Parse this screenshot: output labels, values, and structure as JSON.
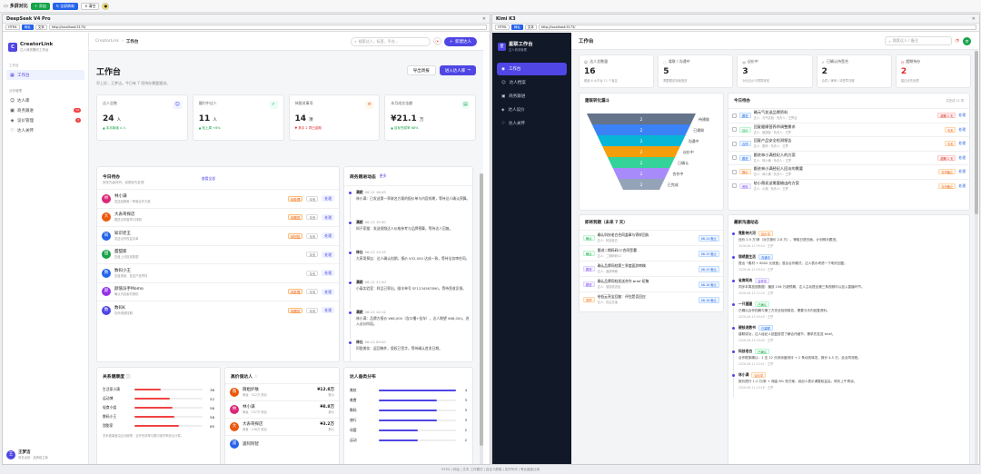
{
  "topbar": {
    "title": "多屏对比",
    "add": "添加",
    "refresh_all": "全屏刷新",
    "clear": "清空"
  },
  "footer": "HTML | 网址 | 文本 工作模式 | 自定义屏幕 | 实时写作 | 等比缩放比例",
  "left_pane": {
    "title": "DeepSeek V4 Pro",
    "mode_html": "HTML",
    "mode_web": "网址",
    "mode_text": "文本",
    "url": "http://localhost:5173/"
  },
  "right_pane": {
    "title": "Kimi K3",
    "mode_html": "HTML",
    "mode_web": "网址",
    "mode_text": "文本",
    "url": "http://localhost:5173/"
  },
  "L": {
    "brand": "CreatorLink",
    "brand_sub": "达人商务履约工作台",
    "sec1": "工作台",
    "sec2": "业务管理",
    "nav": [
      {
        "label": "工作台"
      },
      {
        "label": "达人库"
      },
      {
        "label": "商务跟进",
        "badge": "14"
      },
      {
        "label": "议价管理",
        "badge": "3"
      },
      {
        "label": "达人关怀"
      }
    ],
    "user": {
      "name": "王梦洁",
      "role": "商务运营 · 品牌组主管",
      "avatar": "王"
    },
    "crumb": "CreatorLink",
    "crumb_cur": "工作台",
    "search": "搜索达人、标签、平台...",
    "new_btn": "新建达人",
    "title": "工作台",
    "subtitle": "早上好，王梦洁。今日有 7 项待办需要跟进。",
    "export": "导出周报",
    "enter": "进入达人库",
    "stats": [
      {
        "label": "达人总数",
        "value": "24",
        "unit": "人",
        "sub": "▲ 本月新增 4 人"
      },
      {
        "label": "履约中达人",
        "value": "11",
        "unit": "人",
        "sub": "▲ 较上周 +8%"
      },
      {
        "label": "待跟进事项",
        "value": "14",
        "unit": "项",
        "sub": "▼ 其中 2 项已逾期"
      },
      {
        "label": "本月成交金额",
        "value": "¥21.1",
        "unit": "万",
        "sub": "▲ 目标完成率 68%"
      }
    ],
    "todo": {
      "title": "今日待办",
      "sub": "按优先级排列，逾期优先处理",
      "link": "查看全部",
      "today": "今天",
      "handle": "处理",
      "items": [
        {
          "av": "林",
          "color": "#db2777",
          "name": "林小满",
          "desc": "发送品牌第一季度合作方案",
          "tag": "待处理"
        },
        {
          "av": "大",
          "color": "#ea580c",
          "name": "大表哥探店",
          "desc": "跟进合同盖章与排期",
          "tag": "待跟进"
        },
        {
          "av": "知",
          "color": "#2563eb",
          "name": "知识老王",
          "desc": "发送合作权益清单",
          "tag": "待回复"
        },
        {
          "av": "甜",
          "color": "#16a34a",
          "name": "甜甜家",
          "desc": "复盘上月投放数据",
          "tag": ""
        },
        {
          "av": "数",
          "color": "#2563eb",
          "name": "数码小王",
          "desc": "复盘视频，发送产品寄样",
          "tag": ""
        },
        {
          "av": "颜",
          "color": "#9333ea",
          "name": "颜值派手Momo",
          "desc": "确认内容素材授权",
          "tag": "待处理"
        },
        {
          "av": "数",
          "color": "#4f46e5",
          "name": "数码K",
          "desc": "协商视频档期",
          "tag": "待跟进"
        }
      ]
    },
    "timeline": {
      "title": "商务跟进动态",
      "more": "更多",
      "items": [
        {
          "who": "满妮",
          "date": "06-12 16:45",
          "text": "林小满：已发送第一季联名方案的报价单与内容排期，等待达人确认预算。"
        },
        {
          "who": "满妮",
          "date": "06-12 15:30",
          "text": "知子家猫：发送视频达人价格参考与品牌预算，等待达人回复。"
        },
        {
          "who": "林仕",
          "date": "06-12 13:15",
          "text": "大表哥探店：达人确认档期，报价 ¥32,000 达成一致，等待法务审合同。"
        },
        {
          "who": "满妮",
          "date": "06-12 11:20",
          "text": "小泰实验室：样品已寄出，顺丰单号 SF1234567890，等待签收反馈。"
        },
        {
          "who": "满妮",
          "date": "06-12 10:12",
          "text": "林小满：品牌方报价 ¥68,000（含口播+挂车），达人期望 ¥88,000，进入议价阶段。"
        },
        {
          "who": "林仕",
          "date": "06-12 09:20",
          "text": "阿甜美妆：返回稿件，版权已签字，等待确认首发日期。"
        }
      ]
    },
    "health": {
      "title": "关系健康度",
      "items": [
        {
          "name": "生活家小满",
          "value": 38
        },
        {
          "name": "运动博",
          "value": 52
        },
        {
          "name": "轻食小姐",
          "value": 56
        },
        {
          "name": "数码小王",
          "value": 58
        },
        {
          "name": "甜甜家",
          "value": 65
        }
      ],
      "note": "关系健康度由互动频率、合作完成率与履约准时率综合计算。"
    },
    "top": {
      "title": "高价值达人",
      "items": [
        {
          "av": "薇",
          "color": "#ea580c",
          "name": "薇姐护肤",
          "sub": "美妆 · 312万 粉丝",
          "amount": "¥12.8万",
          "lbl": "报价"
        },
        {
          "av": "林",
          "color": "#db2777",
          "name": "林小满",
          "sub": "美妆 · 237万 粉丝",
          "amount": "¥8.8万",
          "lbl": "报价"
        },
        {
          "av": "大",
          "color": "#ea580c",
          "name": "大表哥探店",
          "sub": "美食 · 156万 粉丝",
          "amount": "¥3.2万",
          "lbl": "报价"
        },
        {
          "av": "遥",
          "color": "#2563eb",
          "name": "遥阿阿智",
          "sub": "",
          "amount": "",
          "lbl": ""
        }
      ]
    },
    "cat": {
      "title": "达人垂类分布",
      "items": [
        {
          "name": "美妆",
          "value": 4
        },
        {
          "name": "美食",
          "value": 3
        },
        {
          "name": "数码",
          "value": 3
        },
        {
          "name": "旅行",
          "value": 3
        },
        {
          "name": "母婴",
          "value": 2
        },
        {
          "name": "运动",
          "value": 2
        }
      ]
    }
  },
  "R": {
    "brand": "星联工作台",
    "brand_sub": "达人商务管理",
    "nav": [
      {
        "label": "工作台"
      },
      {
        "label": "达人档案"
      },
      {
        "label": "商务跟进"
      },
      {
        "label": "达人议价"
      },
      {
        "label": "达人关怀"
      }
    ],
    "title": "工作台",
    "search": "搜索达人 / 备注",
    "avatar": "李",
    "stats": [
      {
        "label": "达人总数量",
        "value": "16",
        "sub": "覆盖 6 大平台 11 个省区"
      },
      {
        "label": "谍联 / 沟通中",
        "value": "5",
        "sub": "需要跟进持续推进"
      },
      {
        "label": "议价中",
        "value": "3",
        "sub": "对比议价与预算底线"
      },
      {
        "label": "已确认待签合",
        "value": "2",
        "sub": "合同 / 律审 / 待签章流程"
      },
      {
        "label": "超期待办",
        "value": "2",
        "sub": "建议优先处理"
      }
    ],
    "funnel": {
      "title": "建联转化漏斗",
      "stages": [
        {
          "name": "待建联",
          "value": 2,
          "color": "#64748b"
        },
        {
          "name": "已建联",
          "value": 2,
          "color": "#3b82f6"
        },
        {
          "name": "沟通中",
          "value": 2,
          "color": "#06b6d4"
        },
        {
          "name": "议价中",
          "value": 2,
          "color": "#f59e0b"
        },
        {
          "name": "已确认",
          "value": 2,
          "color": "#34d399"
        },
        {
          "name": "合作中",
          "value": 2,
          "color": "#a78bfa"
        },
        {
          "name": "已完成",
          "value": 2,
          "color": "#94a3b8"
        }
      ]
    },
    "todo": {
      "title": "今日待办",
      "meta": "共完成 12 项",
      "handle": "处理",
      "items": [
        {
          "tag": "跟进",
          "tc": "tg-bl",
          "title": "确元气发送品牌资料",
          "sub": "达人：元气实验 · 负责人：王梦洁",
          "due": "超期 2 天",
          "dc": "tg-rd"
        },
        {
          "tag": "议价",
          "tc": "tg-gr",
          "title": "回复健康营养师调整需求",
          "sub": "达人：健康营 · 负责人：王梦",
          "due": "今天",
          "dc": "tg-or"
        },
        {
          "tag": "合同",
          "tc": "tg-bl",
          "title": "回复产品安全检测报告",
          "sub": "达人：数码 · 负责人：王梦",
          "due": "今天",
          "dc": "tg-or"
        },
        {
          "tag": "跟进",
          "tc": "tg-bl",
          "title": "跟进林小满经纪人的方案",
          "sub": "达人：林小满 · 负责人：王梦",
          "due": "超期 2 天",
          "dc": "tg-rd"
        },
        {
          "tag": "报价",
          "tc": "tg-or",
          "title": "跟进林小满经纪人回访的需要",
          "sub": "达人：林小满 · 负责人：王梦",
          "due": "今天截止",
          "dc": "tg-or"
        },
        {
          "tag": "资料",
          "tc": "tg-pu",
          "title": "给小薇发送需要输出的方案",
          "sub": "达人：小薇 · 负责人：王梦",
          "due": "今天截止",
          "dc": "tg-or"
        }
      ]
    },
    "deadline": {
      "title": "即将到期（未来 7 天）",
      "items": [
        {
          "tag": "确认",
          "tc": "tg-gr",
          "title": "确认科技老白合同盖章与寄样回执",
          "sub": "达人：科技老白",
          "date": "06-14 截止"
        },
        {
          "tag": "确认",
          "tc": "tg-gr",
          "title": "跟进二期码码CC合同签署",
          "sub": "达人：二期码码CC",
          "date": "06-15 截止"
        },
        {
          "tag": "跟进",
          "tc": "tg-pu",
          "title": "确认品牌同档第三季度面辞审稿",
          "sub": "达人：面辞审稿",
          "date": "06-15 截止"
        },
        {
          "tag": "跟进",
          "tc": "tg-pu",
          "title": "确认品牌同档发送合作 brief 初稿",
          "sub": "达人：健康说说话",
          "date": "06-16 截止"
        },
        {
          "tag": "关怀",
          "tc": "tg-or",
          "title": "给低云亮宝回复：评估是否回应",
          "sub": "达人：低云亮宝",
          "date": "06-18 截止"
        }
      ]
    },
    "activity": {
      "title": "最新沟通动态",
      "items": [
        {
          "who": "霓影神大河",
          "tag": "议价中",
          "tc": "tg-or",
          "text": "还价 2.5 万/条（对方报价 2.8 万），等取已提去面，计划明天跟进。",
          "time": "2026-06-13 09:54 · 王梦"
        },
        {
          "who": "锦绣要生活",
          "tag": "沟通中",
          "tc": "tg-bl",
          "text": "提出「素材 + 8000 元底座」混合合作模式，达人表示考虑一下明天回复。",
          "time": "2026-06-13 09:54 · 王梦"
        },
        {
          "who": "省席阿冉",
          "tag": "合作中",
          "tc": "tg-pu",
          "text": "同步本周投放数据：播放 156 万超预期，达人主动提出第三条视频可以加入直播环节。",
          "time": "2026-06-13 11:20 · 王梦"
        },
        {
          "who": "一只猩猩",
          "tag": "已确认",
          "tc": "tg-gr",
          "text": "已确认合作档期与第三方安全检测报告，需要今天内回复资料。",
          "time": "2026-06-13 09:40 · 王梦"
        },
        {
          "who": "硬核说数书",
          "tag": "已建联",
          "tc": "tg-bl",
          "text": "建联成功，达人经纪人回复愿意了解合作细节，需求先发送 brief。",
          "time": "2026-06-13 09:00 · 王梦"
        },
        {
          "who": "科技老白",
          "tag": "已确认",
          "tc": "tg-gr",
          "text": "合作框架确认：1 支 12 分钟深度测评 + 2 条动态转发，报价 4.5 万，走合同流程。",
          "time": "2026-06-11 15:41 · 王梦"
        },
        {
          "who": "林小满",
          "tag": "议价中",
          "tc": "tg-or",
          "text": "报价提升 1.2 万/条 + 佣金 8% 抢方案，经纪人表示调整权益后，明天上午再谈。",
          "time": "2026-06-11 10:18 · 王梦"
        }
      ]
    }
  },
  "colors": {
    "accent": "#4f46e5",
    "dark_sidebar": "#111827"
  }
}
